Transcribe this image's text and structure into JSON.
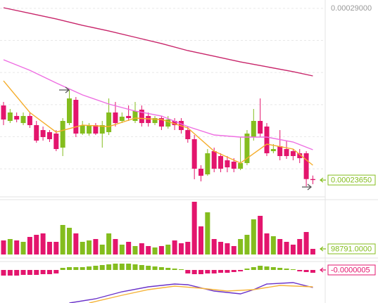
{
  "chart_data": [
    {
      "type": "candlestick",
      "open": [
        0.00025974,
        0.00025492,
        0.00025646,
        0.00025426,
        0.00025646,
        0.00025361,
        0.00025207,
        0.00025142,
        0.00025098,
        0.0002466,
        0.00025426,
        0.00026149,
        0.00025098,
        0.00025098,
        0.00025361,
        0.00025098,
        0.00025142,
        0.00025755,
        0.00025492,
        0.00025646,
        0.00025492,
        0.00025843,
        0.00025646,
        0.00025426,
        0.0002558,
        0.00025317,
        0.00025492,
        0.00025492,
        0.00025207,
        0.00024923,
        0.00024003,
        0.00023827,
        0.0002455,
        0.00024397,
        0.00024265,
        0.00024222,
        0.00024003,
        0.00024178,
        0.00024988,
        0.00025492,
        0.00025317,
        0.0002455,
        0.00024704,
        0.00024616,
        0.0002455,
        0.00024484,
        0.00024484,
        0.0002368
      ],
      "high": [
        0.00026084,
        0.00025865,
        0.00025755,
        0.00025755,
        0.00025755,
        0.00025492,
        0.00025317,
        0.00025207,
        0.00025207,
        0.0002558,
        0.00026456,
        0.00026237,
        0.00025492,
        0.00025426,
        0.00025426,
        0.00025492,
        0.00026193,
        0.00026084,
        0.00025755,
        0.00025974,
        0.00026084,
        0.00025974,
        0.00025755,
        0.00025646,
        0.00025646,
        0.00025646,
        0.0002558,
        0.0002558,
        0.00025317,
        0.00025054,
        0.00024112,
        0.00024616,
        0.0002466,
        0.00024484,
        0.00024397,
        0.00024331,
        0.00024988,
        0.00025207,
        0.00025865,
        0.00026193,
        0.00025426,
        0.00024769,
        0.00025207,
        0.00024879,
        0.00024616,
        0.00024616,
        0.0002455,
        0.0002379
      ],
      "low": [
        0.00025361,
        0.00025426,
        0.00025448,
        0.00025361,
        0.00025273,
        0.00024813,
        0.00024879,
        0.00024835,
        0.0002455,
        0.00024397,
        0.00025361,
        0.00024988,
        0.00025054,
        0.00025032,
        0.00025054,
        0.0002466,
        0.00025054,
        0.00025317,
        0.00025426,
        0.00025492,
        0.00025426,
        0.00025317,
        0.00025317,
        0.00025361,
        0.00025207,
        0.00025251,
        0.00025207,
        0.00025098,
        0.00024813,
        0.00023674,
        0.00023608,
        0.00023783,
        0.00023893,
        0.00023893,
        0.00023893,
        0.00023893,
        0.00023959,
        0.00024112,
        0.00024879,
        0.00024988,
        0.00024397,
        0.00024484,
        0.00024265,
        0.00024309,
        0.00024265,
        0.00024178,
        0.00023455,
        0.0002352
      ],
      "close": [
        0.00025536,
        0.00025755,
        0.00025536,
        0.00025646,
        0.00025361,
        0.00024879,
        0.00024988,
        0.00024923,
        0.00024616,
        0.00025492,
        0.00026193,
        0.00025098,
        0.00025361,
        0.00025361,
        0.00025098,
        0.00025361,
        0.00025755,
        0.00025426,
        0.00025624,
        0.0002558,
        0.00025799,
        0.00025426,
        0.00025426,
        0.0002558,
        0.00025317,
        0.00025536,
        0.00025361,
        0.00025207,
        0.00024923,
        0.00024003,
        0.00023783,
        0.00024484,
        0.00024003,
        0.00024003,
        0.00024046,
        0.00024003,
        0.00024178,
        0.00025098,
        0.00025492,
        0.00025098,
        0.00024484,
        0.00024616,
        0.00024397,
        0.00024397,
        0.00024397,
        0.00024331,
        0.0002368,
        0.0002365
      ],
      "up_color": "#84bd1e",
      "down_color": "#e3156d",
      "ylim": [
        0.0002317,
        0.0002926
      ],
      "yticks": [
        {
          "value": 0.00029,
          "label": "0.00029000"
        }
      ],
      "ygrid": [
        0.00029,
        0.00028,
        0.00027,
        0.00026,
        0.00025,
        0.00024
      ],
      "lines": [
        {
          "color": "#c8256a",
          "x": [
            0,
            4,
            8,
            12,
            16,
            20,
            24,
            28,
            32,
            36,
            40,
            44,
            47
          ],
          "values": [
            0.00029019,
            0.00028844,
            0.00028669,
            0.00028471,
            0.00028296,
            0.00028099,
            0.00027902,
            0.00027683,
            0.00027508,
            0.00027332,
            0.00027179,
            0.00027026,
            0.00026894
          ]
        },
        {
          "color": "#ee6ee2",
          "x": [
            0,
            4,
            8,
            12,
            16,
            20,
            24,
            28,
            32,
            36,
            40,
            44,
            47
          ],
          "values": [
            0.00027398,
            0.0002707,
            0.00026675,
            0.00026303,
            0.00026018,
            0.00025799,
            0.00025645,
            0.00025317,
            0.00025054,
            0.00024988,
            0.00024988,
            0.00024835,
            0.00024594
          ]
        },
        {
          "color": "#f5ad2c",
          "x": [
            0,
            4,
            8,
            12,
            16,
            20,
            24,
            28,
            32,
            36,
            40,
            44,
            47
          ],
          "values": [
            0.00026741,
            0.00025755,
            0.00025142,
            0.00025361,
            0.00025317,
            0.0002558,
            0.00025536,
            0.00025273,
            0.0002455,
            0.00024178,
            0.00024769,
            0.00024616,
            0.00024112
          ]
        }
      ],
      "last_label": "0.00023650"
    },
    {
      "type": "volume",
      "values": [
        247000,
        271700,
        247000,
        222300,
        308750,
        345800,
        370500,
        222300,
        222300,
        518700,
        469300,
        370500,
        222300,
        247000,
        271700,
        172900,
        370500,
        271700,
        172900,
        222300,
        148200,
        197600,
        148200,
        123500,
        148200,
        172900,
        247000,
        197600,
        222300,
        926250,
        494000,
        741000,
        271700,
        222300,
        197600,
        148200,
        271700,
        345800,
        617500,
        679250,
        370500,
        321100,
        271700,
        222300,
        172900,
        271700,
        395200,
        98791
      ],
      "ylim": [
        0,
        951000
      ],
      "last_label": "98791.0000"
    },
    {
      "type": "macd",
      "histogram": [
        -1e-06,
        -1e-06,
        -1e-06,
        -8.75e-07,
        -8.75e-07,
        -8.75e-07,
        -7.5e-07,
        -7.5e-07,
        -6.25e-07,
        3.75e-07,
        5e-07,
        5e-07,
        5e-07,
        6.25e-07,
        7.5e-07,
        8.75e-07,
        1e-06,
        1.125e-06,
        1.125e-06,
        1.125e-06,
        1e-06,
        8.75e-07,
        7.5e-07,
        6.25e-07,
        5e-07,
        3.75e-07,
        2.5e-07,
        1.25e-07,
        -6.25e-07,
        -7.5e-07,
        -7.5e-07,
        -6.25e-07,
        -6.25e-07,
        -5e-07,
        -5e-07,
        -3.75e-07,
        -2.5e-07,
        2.5e-07,
        5e-07,
        7.5e-07,
        6.25e-07,
        5e-07,
        3.75e-07,
        2.5e-07,
        1.25e-07,
        -2.5e-07,
        -3.75e-07,
        -5e-07
      ],
      "up_color": "#84bd1e",
      "down_color": "#e3156d",
      "ylim": [
        -5.875e-06,
        1.125e-06
      ],
      "lines": [
        {
          "color": "#6a32c9",
          "x": [
            10,
            14,
            18,
            22,
            26,
            28,
            32,
            36,
            38,
            40,
            44,
            47
          ],
          "values": [
            -5.875e-06,
            -5.125e-06,
            -3.875e-06,
            -3e-06,
            -2.5e-06,
            -2.625e-06,
            -3.75e-06,
            -4.25e-06,
            -3.5e-06,
            -2.5e-06,
            -2.25e-06,
            -3.125e-06
          ]
        },
        {
          "color": "#f5b43a",
          "x": [
            13,
            18,
            22,
            26,
            30,
            34,
            38,
            42,
            47
          ],
          "values": [
            -5.875e-06,
            -4.5e-06,
            -3.5e-06,
            -2.875e-06,
            -3.25e-06,
            -3.75e-06,
            -3.5e-06,
            -2.75e-06,
            -3e-06
          ]
        }
      ],
      "last_label": "-0.0000005"
    }
  ]
}
